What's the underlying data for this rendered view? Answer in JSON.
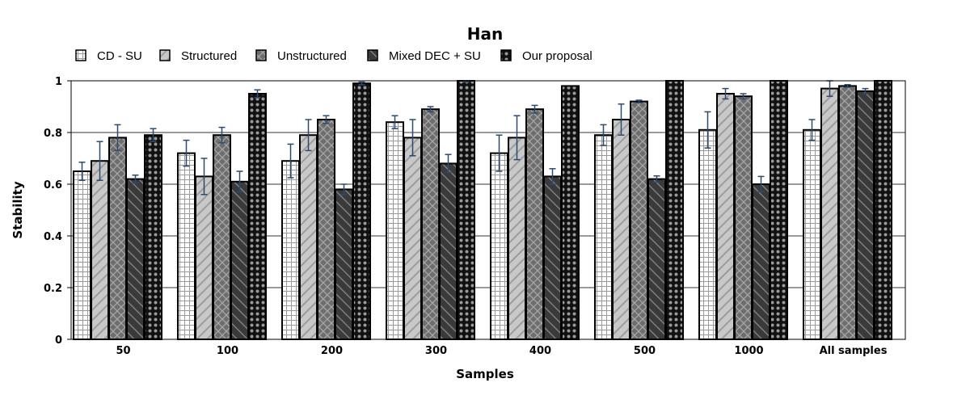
{
  "chart_data": {
    "type": "bar",
    "title": "Han",
    "xlabel": "Samples",
    "ylabel": "Stability",
    "ylim": [
      0,
      1
    ],
    "yticks": [
      "0",
      "0.2",
      "0.4",
      "0.6",
      "0.8",
      "1"
    ],
    "ytick_values": [
      0,
      0.2,
      0.4,
      0.6,
      0.8,
      1
    ],
    "grid": "horizontal",
    "legend_position": "top-left",
    "categories": [
      "50",
      "100",
      "200",
      "300",
      "400",
      "500",
      "1000",
      "All samples"
    ],
    "series": [
      {
        "name": "CD - SU",
        "pattern": "grid",
        "fill": "#ffffff",
        "values": [
          0.65,
          0.72,
          0.69,
          0.84,
          0.72,
          0.79,
          0.81,
          0.81
        ],
        "errors": [
          0.035,
          0.05,
          0.065,
          0.025,
          0.07,
          0.04,
          0.07,
          0.04
        ]
      },
      {
        "name": "Structured",
        "pattern": "diagonal",
        "fill": "#c8c8c8",
        "values": [
          0.69,
          0.63,
          0.79,
          0.78,
          0.78,
          0.85,
          0.95,
          0.97
        ],
        "errors": [
          0.075,
          0.07,
          0.06,
          0.07,
          0.085,
          0.06,
          0.02,
          0.03
        ]
      },
      {
        "name": "Unstructured",
        "pattern": "crosshatch",
        "fill": "#6e6e6e",
        "values": [
          0.78,
          0.79,
          0.85,
          0.89,
          0.89,
          0.92,
          0.94,
          0.98
        ],
        "errors": [
          0.05,
          0.03,
          0.015,
          0.01,
          0.015,
          0.005,
          0.01,
          0.005
        ]
      },
      {
        "name": "Mixed DEC + SU",
        "pattern": "diagonal-dark",
        "fill": "#3a3a3a",
        "values": [
          0.62,
          0.61,
          0.58,
          0.68,
          0.63,
          0.62,
          0.6,
          0.96
        ],
        "errors": [
          0.015,
          0.04,
          0.02,
          0.035,
          0.03,
          0.012,
          0.03,
          0.01
        ]
      },
      {
        "name": "Our proposal",
        "pattern": "dots",
        "fill": "#111111",
        "values": [
          0.79,
          0.95,
          0.99,
          1.0,
          0.98,
          1.0,
          1.0,
          1.0
        ],
        "errors": [
          0.025,
          0.015,
          0.005,
          0.005,
          0.003,
          0.003,
          0.003,
          0.003
        ]
      }
    ],
    "colors": {
      "error_bar": "#2b4a6f",
      "bar_edge": "#000000",
      "grid": "#333333"
    }
  }
}
